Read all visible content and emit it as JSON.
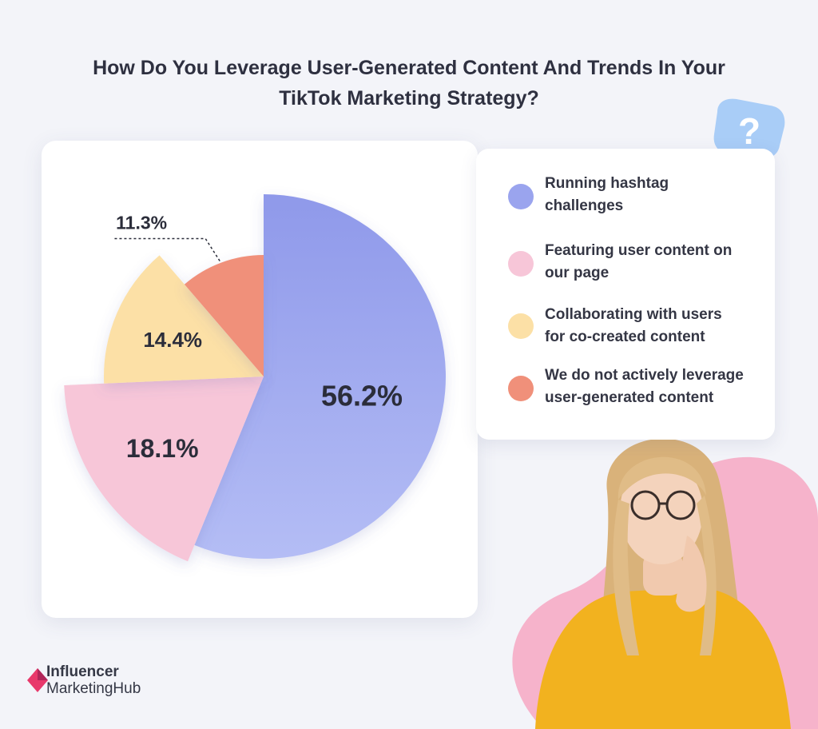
{
  "title": {
    "line1": "How Do You Leverage User-Generated Content And Trends In Your",
    "line2": "TikTok Marketing Strategy?"
  },
  "colors": {
    "background": "#f3f4f9",
    "running": "#9aa4ee",
    "featuring": "#f7c6d8",
    "collaborating": "#fce0a6",
    "not_leverage": "#f0907a",
    "pink_blob": "#f6b3cb",
    "question_bubble": "#a9cdf7",
    "brand": "#e8386b"
  },
  "chart_data": {
    "type": "pie",
    "slices": [
      {
        "label": "Running hashtag challenges",
        "value": 56.2,
        "value_label": "56.2%"
      },
      {
        "label": "Featuring user content on our page",
        "value": 18.1,
        "value_label": "18.1%"
      },
      {
        "label": "Collaborating with users for co-created content",
        "value": 14.4,
        "value_label": "14.4%"
      },
      {
        "label": "We do not actively leverage user-generated content",
        "value": 11.3,
        "value_label": "11.3%"
      }
    ],
    "legend_position": "right"
  },
  "legend": [
    {
      "line1": "Running hashtag",
      "line2": "challenges"
    },
    {
      "line1": "Featuring user content on",
      "line2": "our page"
    },
    {
      "line1": "Collaborating with users",
      "line2": "for co-created content"
    },
    {
      "line1": "We do not actively leverage",
      "line2": "user-generated content"
    }
  ],
  "brand": {
    "line1": "Influencer",
    "line2": "MarketingHub",
    "icon": "diamond-logo-icon"
  },
  "decorations": {
    "question_icon": "question-bubble-icon",
    "question_mark": "?",
    "person": "thinking-woman-illustration"
  }
}
